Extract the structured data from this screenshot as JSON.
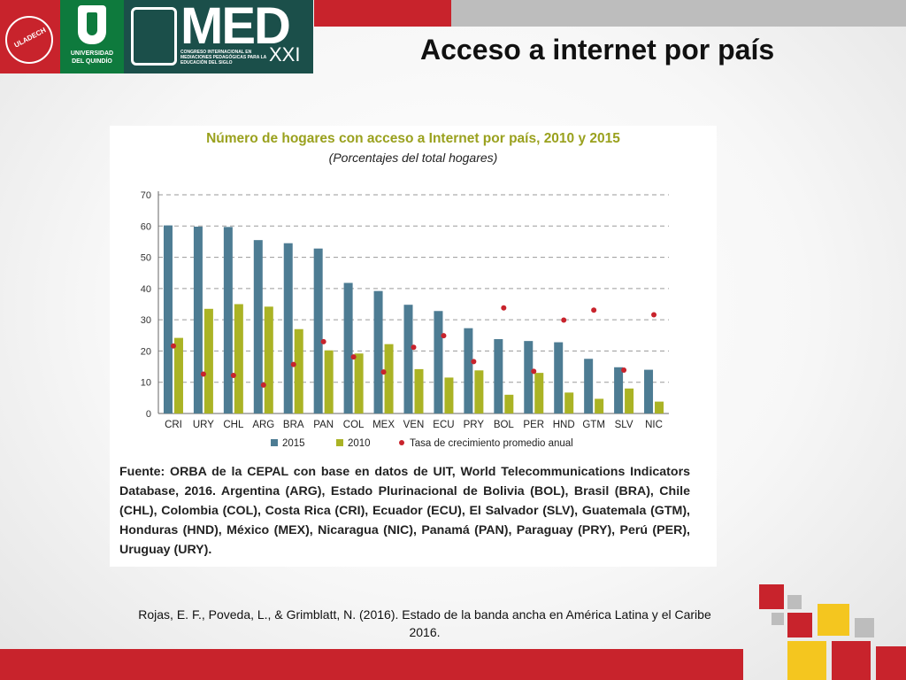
{
  "slide": {
    "title": "Acceso a internet por país",
    "citation": "Rojas, E. F., Poveda, L., & Grimblatt, N. (2016). Estado de la banda ancha en América Latina y el Caribe 2016."
  },
  "logos": {
    "uladech_text": "ULADECH",
    "uq_line1": "UNIVERSIDAD",
    "uq_line2": "DEL QUINDÍO",
    "med_word": "MED",
    "med_xxi": "XXI",
    "med_sub": "CONGRESO INTERNACIONAL EN MEDIACIONES PEDAGÓGICAS PARA LA EDUCACIÓN DEL SIGLO"
  },
  "colors": {
    "red": "#c8232c",
    "bar2015": "#4d7c93",
    "bar2010": "#aab325",
    "dot": "#c8232c",
    "title_color": "#9aa11e"
  },
  "chart_data": {
    "type": "bar",
    "title": "Número de hogares con acceso a Internet por país, 2010 y 2015",
    "subtitle": "(Porcentajes del total hogares)",
    "categories": [
      "CRI",
      "URY",
      "CHL",
      "ARG",
      "BRA",
      "PAN",
      "COL",
      "MEX",
      "VEN",
      "ECU",
      "PRY",
      "BOL",
      "PER",
      "HND",
      "GTM",
      "SLV",
      "NIC"
    ],
    "ylim": [
      0,
      70
    ],
    "yticks": [
      0,
      10,
      20,
      30,
      40,
      50,
      60,
      70
    ],
    "grid": true,
    "legend_position": "bottom",
    "series": [
      {
        "name": "2015",
        "type": "bar",
        "values": [
          60.2,
          59.8,
          59.7,
          55.5,
          54.5,
          52.8,
          41.8,
          39.2,
          34.8,
          32.8,
          27.3,
          23.8,
          23.2,
          22.8,
          17.5,
          14.8,
          14.0
        ]
      },
      {
        "name": "2010",
        "type": "bar",
        "values": [
          24.2,
          33.5,
          35.0,
          34.2,
          27.0,
          20.2,
          19.2,
          22.2,
          14.2,
          11.5,
          13.8,
          6.0,
          13.0,
          6.7,
          4.7,
          8.0,
          3.8
        ]
      },
      {
        "name": "Tasa de crecimiento promedio anual",
        "type": "scatter",
        "values": [
          21.6,
          12.6,
          12.2,
          9.1,
          15.7,
          23.0,
          18.1,
          13.3,
          21.2,
          24.9,
          16.6,
          33.8,
          13.5,
          29.9,
          33.1,
          13.9,
          31.6
        ]
      }
    ]
  },
  "source": {
    "text": "Fuente: ORBA de la CEPAL con base en datos de UIT, World Telecommunications Indicators Database, 2016. Argentina (ARG), Estado Plurinacional de Bolivia (BOL), Brasil (BRA), Chile (CHL), Colombia (COL), Costa Rica (CRI), Ecuador (ECU), El Salvador (SLV), Guatemala (GTM), Honduras (HND), México (MEX), Nicaragua (NIC), Panamá (PAN), Paraguay (PRY), Perú (PER), Uruguay (URY)."
  }
}
